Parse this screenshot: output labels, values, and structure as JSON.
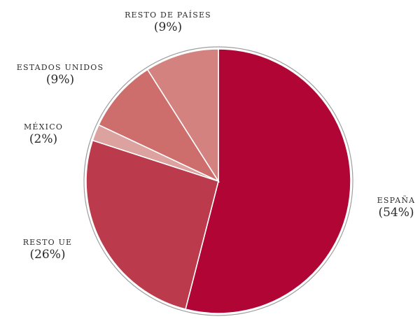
{
  "chart_data": {
    "type": "pie",
    "slices": [
      {
        "name": "ESPAÑA",
        "value": 54,
        "value_label": "(54%)",
        "color": "#b10535"
      },
      {
        "name": "RESTO UE",
        "value": 26,
        "value_label": "(26%)",
        "color": "#bb3a4b"
      },
      {
        "name": "MÉXICO",
        "value": 2,
        "value_label": "(2%)",
        "color": "#dba29f"
      },
      {
        "name": "ESTADOS UNIDOS",
        "value": 9,
        "value_label": "(9%)",
        "color": "#cd6e6c"
      },
      {
        "name": "RESTO DE PAÍSES",
        "value": 9,
        "value_label": "(9%)",
        "color": "#d3827f"
      }
    ],
    "start": "top",
    "direction": "clockwise"
  }
}
